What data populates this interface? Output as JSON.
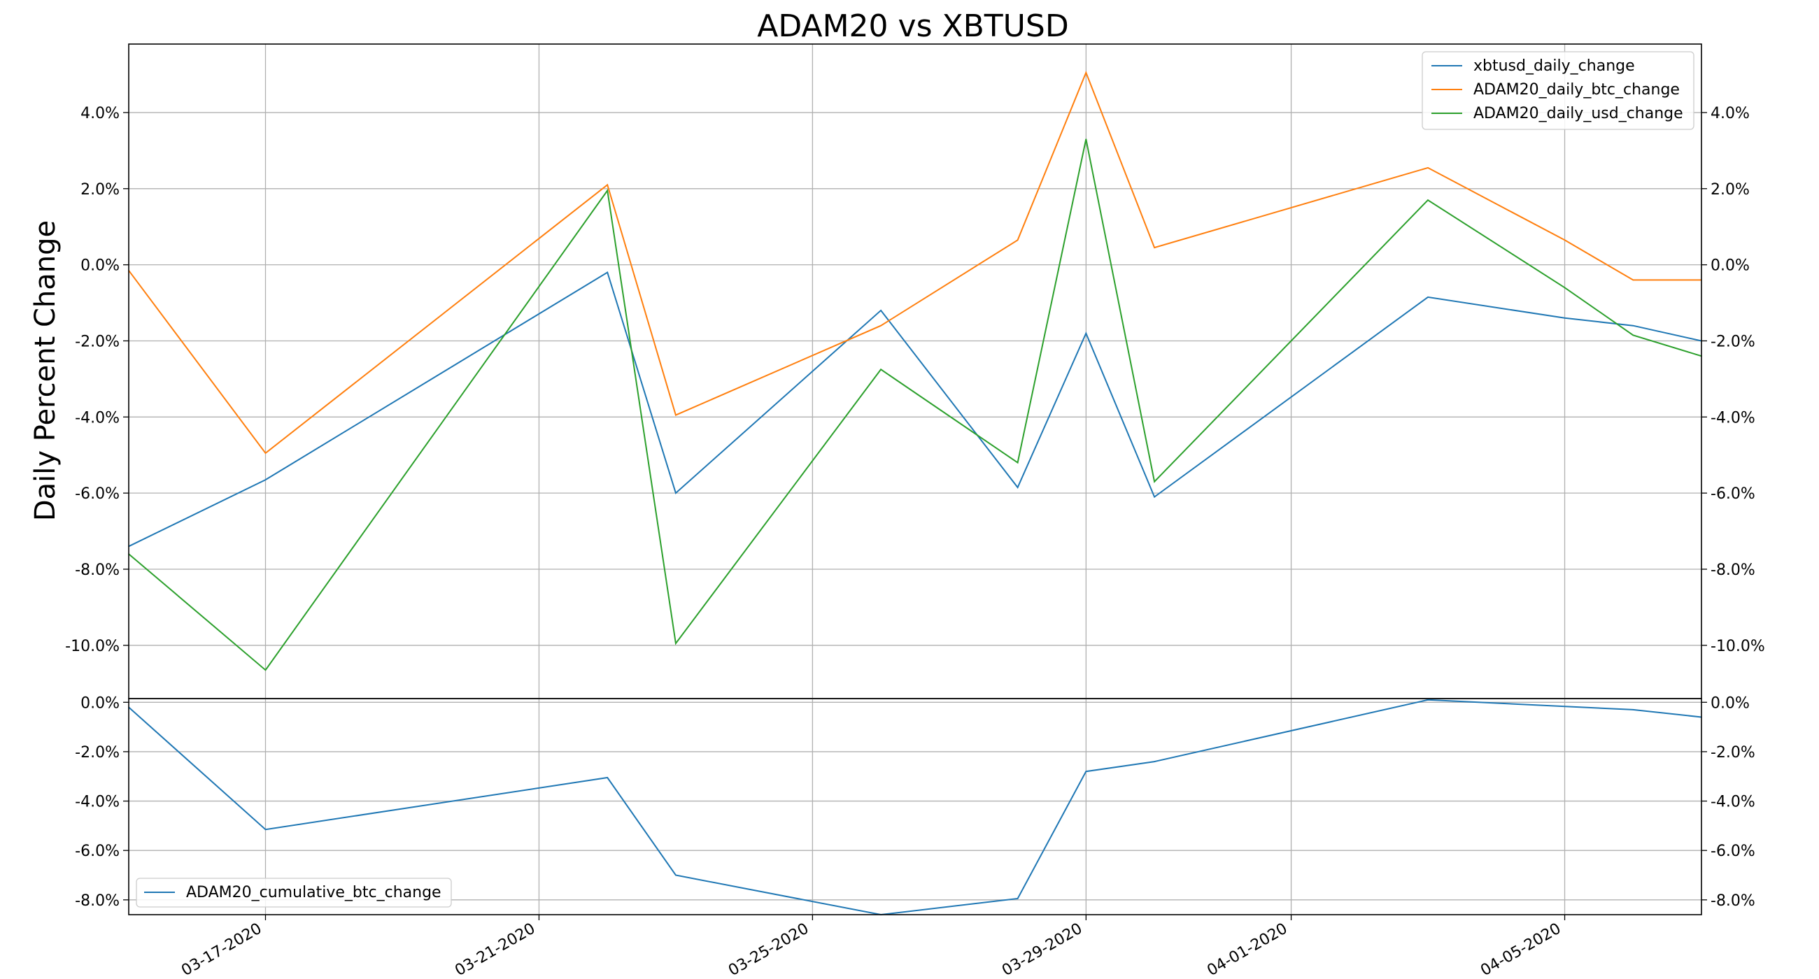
{
  "chart_data": [
    {
      "type": "line",
      "title": "ADAM20 vs XBTUSD",
      "ylabel": "Daily Percent Change",
      "xlabel": "",
      "x": [
        "2020-03-15",
        "2020-03-17",
        "2020-03-22",
        "2020-03-23",
        "2020-03-26",
        "2020-03-28",
        "2020-03-29",
        "2020-03-30",
        "2020-04-03",
        "2020-04-05",
        "2020-04-06",
        "2020-04-07"
      ],
      "x_tick_labels": [
        "03-17-2020",
        "03-21-2020",
        "03-25-2020",
        "03-29-2020",
        "04-01-2020",
        "04-05-2020"
      ],
      "x_tick_dates": [
        "2020-03-17",
        "2020-03-21",
        "2020-03-25",
        "2020-03-29",
        "2020-04-01",
        "2020-04-05"
      ],
      "xlim": [
        "2020-03-15",
        "2020-04-07"
      ],
      "ylim": [
        -11.4,
        5.8
      ],
      "y_ticks": [
        4,
        2,
        0,
        -2,
        -4,
        -6,
        -8,
        -10
      ],
      "y_tick_labels": [
        "4.0%",
        "2.0%",
        "0.0%",
        "-2.0%",
        "-4.0%",
        "-6.0%",
        "-8.0%",
        "-10.0%"
      ],
      "grid": true,
      "legend_position": "top-right",
      "series": [
        {
          "name": "xbtusd_daily_change",
          "color": "#1f77b4",
          "values": [
            -7.4,
            -5.65,
            -0.2,
            -6.0,
            -1.2,
            -5.85,
            -1.8,
            -6.1,
            -0.85,
            -1.4,
            -1.6,
            -2.0
          ]
        },
        {
          "name": "ADAM20_daily_btc_change",
          "color": "#ff7f0e",
          "values": [
            -0.15,
            -4.95,
            2.1,
            -3.95,
            -1.6,
            0.65,
            5.05,
            0.45,
            2.55,
            0.65,
            -0.4,
            -0.4
          ]
        },
        {
          "name": "ADAM20_daily_usd_change",
          "color": "#2ca02c",
          "values": [
            -7.6,
            -10.65,
            1.95,
            -9.95,
            -2.75,
            -5.2,
            3.3,
            -5.7,
            1.7,
            -0.6,
            -1.85,
            -2.4
          ]
        }
      ]
    },
    {
      "type": "line",
      "title": "",
      "xlabel": "",
      "ylabel": "",
      "x": [
        "2020-03-15",
        "2020-03-17",
        "2020-03-22",
        "2020-03-23",
        "2020-03-26",
        "2020-03-28",
        "2020-03-29",
        "2020-03-30",
        "2020-04-03",
        "2020-04-06",
        "2020-04-07"
      ],
      "xlim": [
        "2020-03-15",
        "2020-04-07"
      ],
      "ylim": [
        -8.6,
        0.15
      ],
      "y_ticks": [
        0,
        -2,
        -4,
        -6,
        -8
      ],
      "y_tick_labels": [
        "0.0%",
        "-2.0%",
        "-4.0%",
        "-6.0%",
        "-8.0%"
      ],
      "grid": true,
      "legend_position": "bottom-left",
      "series": [
        {
          "name": "ADAM20_cumulative_btc_change",
          "color": "#1f77b4",
          "values": [
            -0.2,
            -5.15,
            -3.05,
            -7.0,
            -8.6,
            -7.95,
            -2.8,
            -2.4,
            0.1,
            -0.3,
            -0.6
          ]
        }
      ]
    }
  ]
}
